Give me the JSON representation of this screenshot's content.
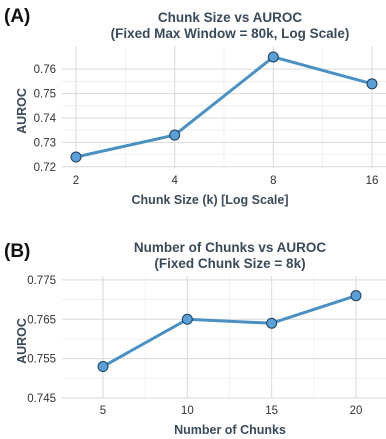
{
  "chart_data": [
    {
      "panel": "(A)",
      "type": "line",
      "title": "Chunk Size vs AUROC",
      "subtitle": "(Fixed Max Window = 80k, Log Scale)",
      "xlabel": "Chunk Size (k) [Log Scale]",
      "ylabel": "AUROC",
      "xscale": "log2",
      "x": [
        2,
        4,
        8,
        16
      ],
      "values": [
        0.724,
        0.733,
        0.765,
        0.754
      ],
      "xticks": [
        "2",
        "4",
        "8",
        "16"
      ],
      "yticks": [
        "0.72",
        "0.73",
        "0.74",
        "0.75",
        "0.76"
      ],
      "ylim": [
        0.7195,
        0.7695
      ],
      "grid": true,
      "color": "#4a90c2"
    },
    {
      "panel": "(B)",
      "type": "line",
      "title": "Number of Chunks vs AUROC",
      "subtitle": "(Fixed Chunk Size = 8k)",
      "xlabel": "Number of Chunks",
      "ylabel": "AUROC",
      "xscale": "linear",
      "x": [
        5,
        10,
        15,
        20
      ],
      "values": [
        0.753,
        0.765,
        0.764,
        0.771
      ],
      "xticks": [
        "5",
        "10",
        "15",
        "20"
      ],
      "yticks": [
        "0.745",
        "0.755",
        "0.765",
        "0.775"
      ],
      "ylim": [
        0.745,
        0.776
      ],
      "grid": true,
      "color": "#4a90c2"
    }
  ]
}
